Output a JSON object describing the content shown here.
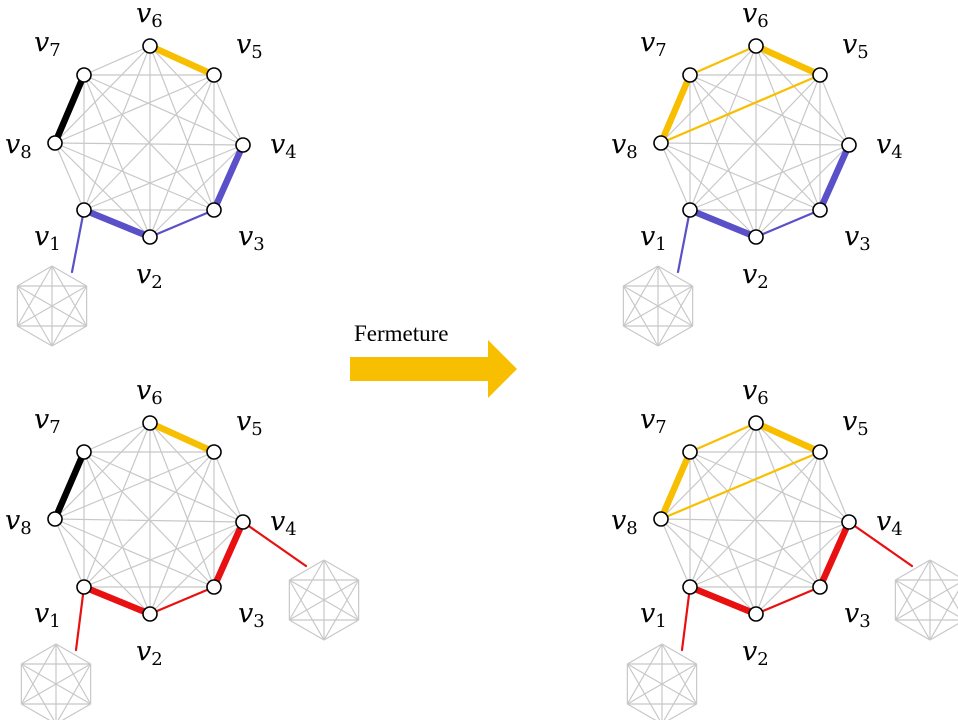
{
  "arrow": {
    "label": "Fermeture",
    "color": "#f8be00"
  },
  "vertex_labels": [
    "v1",
    "v2",
    "v3",
    "v4",
    "v5",
    "v6",
    "v7",
    "v8"
  ],
  "colors": {
    "grey": "#c8c8c8",
    "yellow": "#f8be00",
    "blue": "#5a50c8",
    "black": "#000000",
    "red": "#e81010"
  },
  "panels": [
    {
      "name": "before-top",
      "heavy": [
        [
          6,
          5,
          "yellow"
        ],
        [
          7,
          8,
          "black"
        ],
        [
          4,
          3,
          "blue"
        ],
        [
          1,
          2,
          "blue"
        ]
      ],
      "thin": [
        [
          2,
          3,
          "blue"
        ],
        [
          1,
          "ext0",
          "blue"
        ]
      ],
      "clusters": 1
    },
    {
      "name": "before-bottom",
      "heavy": [
        [
          6,
          5,
          "yellow"
        ],
        [
          7,
          8,
          "black"
        ],
        [
          4,
          3,
          "red"
        ],
        [
          1,
          2,
          "red"
        ]
      ],
      "thin": [
        [
          2,
          3,
          "red"
        ],
        [
          1,
          "ext0",
          "red"
        ],
        [
          4,
          "ext1",
          "red"
        ]
      ],
      "clusters": 2
    },
    {
      "name": "after-top",
      "heavy": [
        [
          6,
          5,
          "yellow"
        ],
        [
          7,
          8,
          "yellow"
        ],
        [
          4,
          3,
          "blue"
        ],
        [
          1,
          2,
          "blue"
        ]
      ],
      "thin": [
        [
          7,
          6,
          "yellow"
        ],
        [
          8,
          5,
          "yellow"
        ],
        [
          2,
          3,
          "blue"
        ],
        [
          1,
          "ext0",
          "blue"
        ]
      ],
      "clusters": 1
    },
    {
      "name": "after-bottom",
      "heavy": [
        [
          6,
          5,
          "yellow"
        ],
        [
          7,
          8,
          "yellow"
        ],
        [
          4,
          3,
          "red"
        ],
        [
          1,
          2,
          "red"
        ]
      ],
      "thin": [
        [
          7,
          6,
          "yellow"
        ],
        [
          8,
          5,
          "yellow"
        ],
        [
          2,
          3,
          "red"
        ],
        [
          1,
          "ext0",
          "red"
        ],
        [
          4,
          "ext1",
          "red"
        ]
      ],
      "clusters": 2
    }
  ]
}
